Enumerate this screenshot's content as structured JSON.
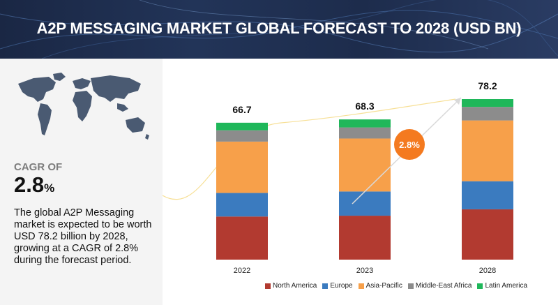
{
  "header": {
    "title": "A2P MESSAGING MARKET GLOBAL FORECAST TO 2028 (USD BN)"
  },
  "summary": {
    "cagr_label": "CAGR OF",
    "cagr_value": "2.8",
    "cagr_unit": "%",
    "description": "The global A2P Messaging market is expected to be worth USD 78.2 billion by 2028, growing at a CAGR of 2.8% during the forecast period."
  },
  "colors": {
    "north_america": "#b23a30",
    "europe": "#3b7bbf",
    "asia_pacific": "#f7a04a",
    "middle_east_africa": "#8c8c8c",
    "latin_america": "#1fb75a",
    "badge": "#f47a1f"
  },
  "chart_data": {
    "type": "bar",
    "stacked": true,
    "title": "A2P MESSAGING MARKET GLOBAL FORECAST TO 2028 (USD BN)",
    "categories": [
      "2022",
      "2023",
      "2028"
    ],
    "totals": [
      66.7,
      68.3,
      78.2
    ],
    "total_labels": [
      "66.7",
      "68.3",
      "78.2"
    ],
    "series": [
      {
        "name": "North America",
        "values": [
          21.0,
          21.4,
          24.5
        ]
      },
      {
        "name": "Europe",
        "values": [
          11.5,
          11.8,
          13.7
        ]
      },
      {
        "name": "Asia-Pacific",
        "values": [
          25.0,
          25.8,
          29.6
        ]
      },
      {
        "name": "Middle-East Africa",
        "values": [
          5.5,
          5.4,
          6.6
        ]
      },
      {
        "name": "Latin America",
        "values": [
          3.7,
          3.9,
          3.8
        ]
      }
    ],
    "growth_badge": "2.8%",
    "legend_position": "bottom-right",
    "ylim": [
      0,
      78.2
    ],
    "grid": false
  }
}
